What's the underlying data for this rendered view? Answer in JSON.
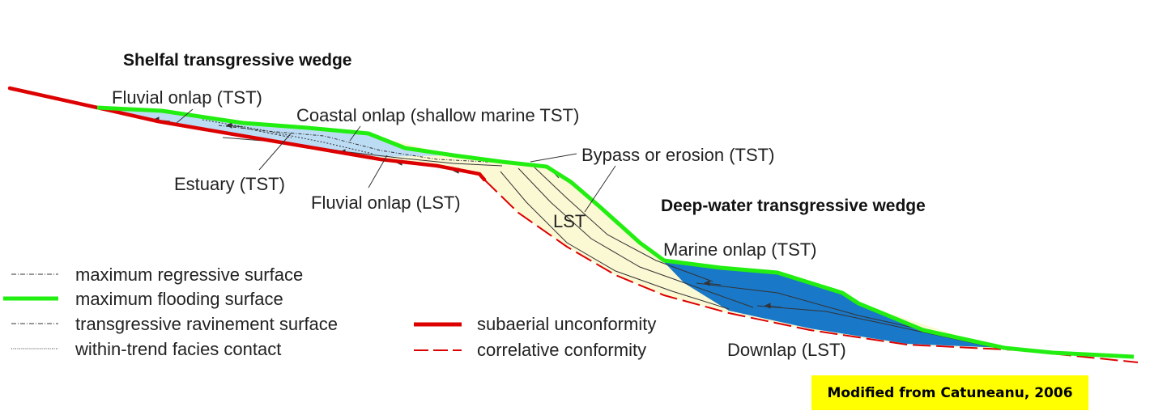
{
  "titles": {
    "shelf": "Shelfal transgressive wedge",
    "deep": "Deep-water transgressive wedge"
  },
  "labels": {
    "fluvial_onlap_tst": "Fluvial onlap (TST)",
    "coastal_onlap": "Coastal onlap (shallow marine TST)",
    "bypass": "Bypass or erosion (TST)",
    "estuary": "Estuary (TST)",
    "fluvial_onlap_lst": "Fluvial onlap (LST)",
    "lst": "LST",
    "marine_onlap": "Marine onlap (TST)",
    "downlap": "Downlap (LST)"
  },
  "legend": [
    {
      "label": "maximum regressive surface",
      "style": "dash-dot-thin"
    },
    {
      "label": "maximum flooding surface",
      "style": "green-thick"
    },
    {
      "label": "transgressive ravinement surface",
      "style": "dash-dot-thin"
    },
    {
      "label": "within-trend facies contact",
      "style": "dotted-thin"
    },
    {
      "label": "subaerial unconformity",
      "style": "red-thick"
    },
    {
      "label": "correlative conformity",
      "style": "red-dashed"
    }
  ],
  "credit": "Modified from Catuneanu, 2006",
  "colors": {
    "green": "#22ee11",
    "red": "#dd0000",
    "light_blue": "#bcdcf4",
    "deep_blue": "#1a78c8",
    "cream": "#fbf8d4",
    "highlight": "#ffff00"
  }
}
